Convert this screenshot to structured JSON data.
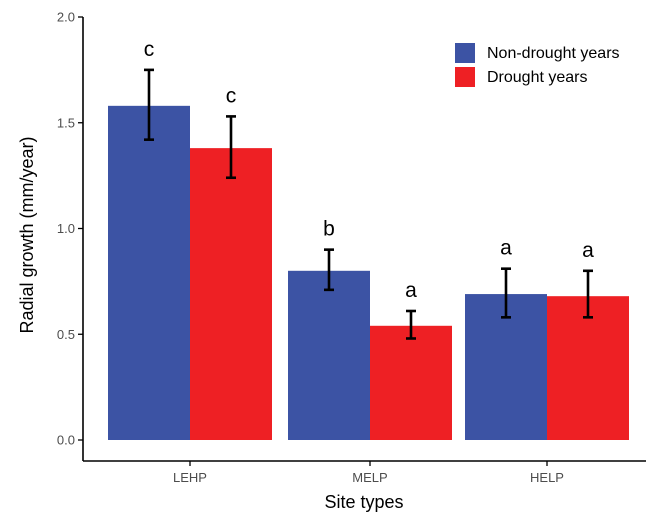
{
  "chart_data": {
    "type": "bar",
    "xlabel": "Site types",
    "ylabel": "Radial growth (mm/year)",
    "ylim": [
      0,
      2.0
    ],
    "yticks": [
      0.0,
      0.5,
      1.0,
      1.5,
      2.0
    ],
    "ytick_labels": [
      "0.0",
      "0.5",
      "1.0",
      "1.5",
      "2.0"
    ],
    "categories": [
      "LEHP",
      "MELP",
      "HELP"
    ],
    "grid": false,
    "legend_position": "top-right",
    "series": [
      {
        "name": "Non-drought years",
        "color": "#3C53A4",
        "values": [
          1.58,
          0.8,
          0.69
        ],
        "error_lower": [
          1.42,
          0.71,
          0.58
        ],
        "error_upper": [
          1.75,
          0.9,
          0.81
        ],
        "significance": [
          "c",
          "b",
          "a"
        ]
      },
      {
        "name": "Drought years",
        "color": "#EE2024",
        "values": [
          1.38,
          0.54,
          0.68
        ],
        "error_lower": [
          1.24,
          0.48,
          0.58
        ],
        "error_upper": [
          1.53,
          0.61,
          0.8
        ],
        "significance": [
          "c",
          "a",
          "a"
        ]
      }
    ]
  }
}
